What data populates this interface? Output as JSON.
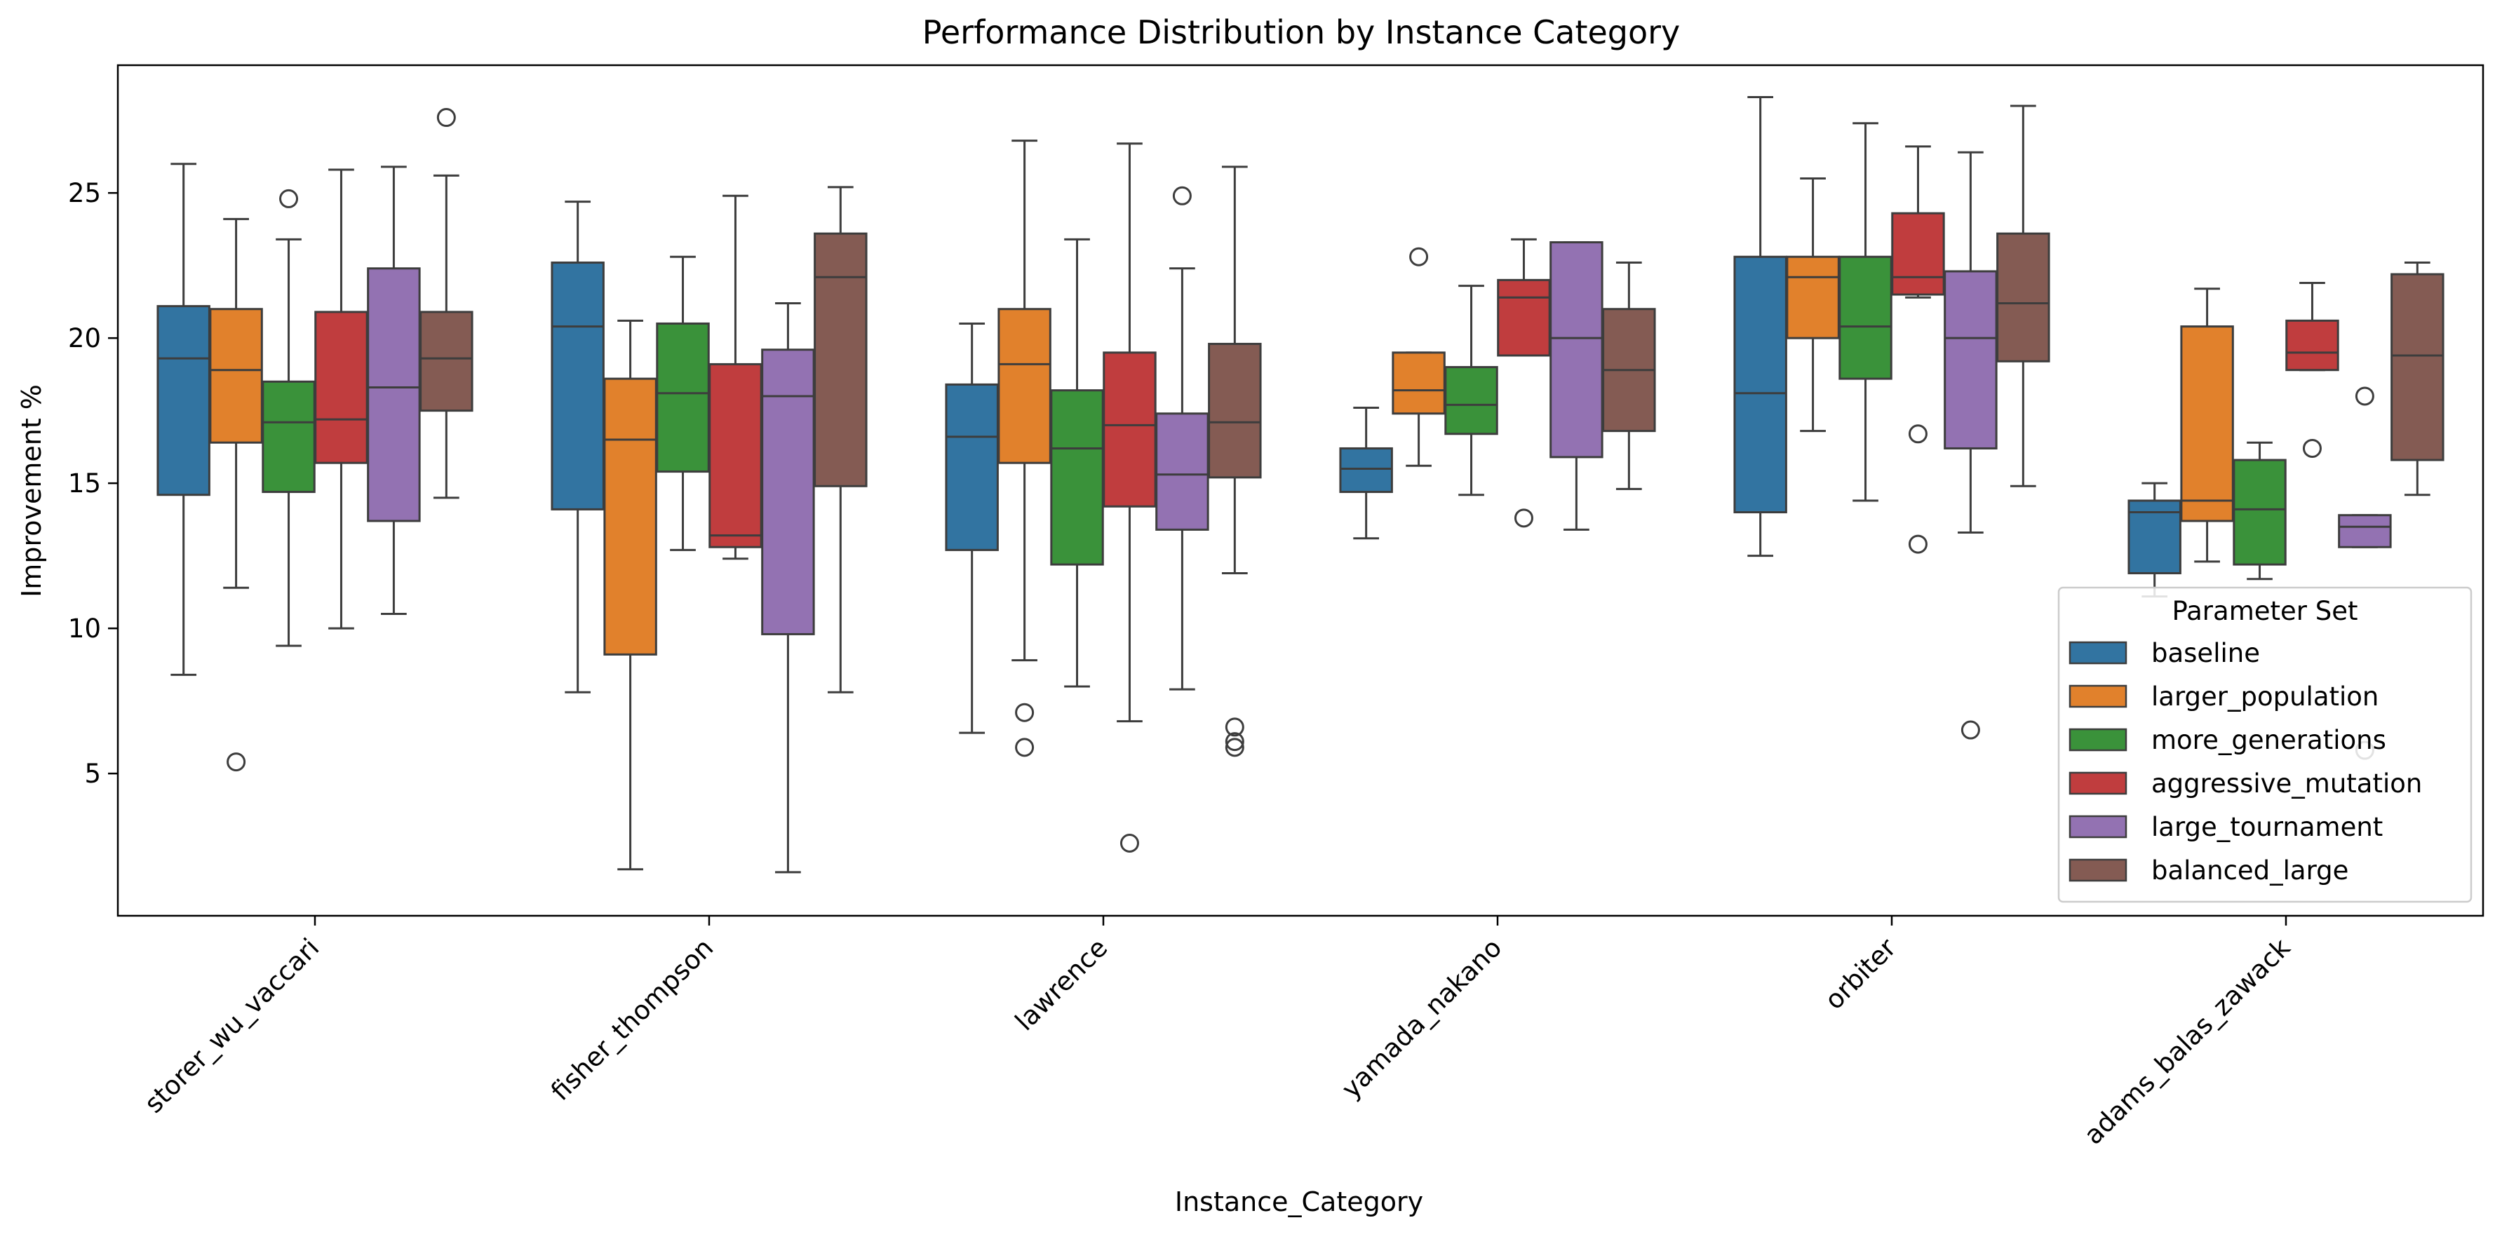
{
  "chart_data": {
    "type": "boxplot",
    "title": "Performance Distribution by Instance Category",
    "xlabel": "Instance_Category",
    "ylabel": "Improvement %",
    "ylim": [
      0.1,
      29.4
    ],
    "yticks": [
      5,
      10,
      15,
      20,
      25
    ],
    "grid": false,
    "legend": {
      "title": "Parameter Set",
      "placement": "lower-right"
    },
    "categories": [
      "storer_wu_vaccari",
      "fisher_thompson",
      "lawrence",
      "yamada_nakano",
      "orbiter",
      "adams_balas_zawack"
    ],
    "series": [
      {
        "name": "baseline",
        "color": "#3274a1",
        "boxes": [
          {
            "whislo": 8.4,
            "q1": 14.6,
            "med": 19.3,
            "q3": 21.1,
            "whishi": 26.0,
            "fliers": []
          },
          {
            "whislo": 7.8,
            "q1": 14.1,
            "med": 20.4,
            "q3": 22.6,
            "whishi": 24.7,
            "fliers": []
          },
          {
            "whislo": 6.4,
            "q1": 12.7,
            "med": 16.6,
            "q3": 18.4,
            "whishi": 20.5,
            "fliers": []
          },
          {
            "whislo": 13.1,
            "q1": 14.7,
            "med": 15.5,
            "q3": 16.2,
            "whishi": 17.6,
            "fliers": []
          },
          {
            "whislo": 12.5,
            "q1": 14.0,
            "med": 18.1,
            "q3": 22.8,
            "whishi": 28.3,
            "fliers": []
          },
          {
            "whislo": 11.1,
            "q1": 11.9,
            "med": 14.0,
            "q3": 14.4,
            "whishi": 15.0,
            "fliers": []
          }
        ]
      },
      {
        "name": "larger_population",
        "color": "#e1812c",
        "boxes": [
          {
            "whislo": 11.4,
            "q1": 16.4,
            "med": 18.9,
            "q3": 21.0,
            "whishi": 24.1,
            "fliers": [
              5.4
            ]
          },
          {
            "whislo": 1.7,
            "q1": 9.1,
            "med": 16.5,
            "q3": 18.6,
            "whishi": 20.6,
            "fliers": []
          },
          {
            "whislo": 8.9,
            "q1": 15.7,
            "med": 19.1,
            "q3": 21.0,
            "whishi": 26.8,
            "fliers": [
              7.1,
              5.9
            ]
          },
          {
            "whislo": 15.6,
            "q1": 17.4,
            "med": 18.2,
            "q3": 19.5,
            "whishi": 19.5,
            "fliers": [
              22.8
            ]
          },
          {
            "whislo": 16.8,
            "q1": 20.0,
            "med": 22.1,
            "q3": 22.8,
            "whishi": 25.5,
            "fliers": []
          },
          {
            "whislo": 12.3,
            "q1": 13.7,
            "med": 14.4,
            "q3": 20.4,
            "whishi": 21.7,
            "fliers": []
          }
        ]
      },
      {
        "name": "more_generations",
        "color": "#3a923a",
        "boxes": [
          {
            "whislo": 9.4,
            "q1": 14.7,
            "med": 17.1,
            "q3": 18.5,
            "whishi": 23.4,
            "fliers": [
              24.8
            ]
          },
          {
            "whislo": 12.7,
            "q1": 15.4,
            "med": 18.1,
            "q3": 20.5,
            "whishi": 22.8,
            "fliers": []
          },
          {
            "whislo": 8.0,
            "q1": 12.2,
            "med": 16.2,
            "q3": 18.2,
            "whishi": 23.4,
            "fliers": []
          },
          {
            "whislo": 14.6,
            "q1": 16.7,
            "med": 17.7,
            "q3": 19.0,
            "whishi": 21.8,
            "fliers": []
          },
          {
            "whislo": 14.4,
            "q1": 18.6,
            "med": 20.4,
            "q3": 22.8,
            "whishi": 27.4,
            "fliers": []
          },
          {
            "whislo": 11.7,
            "q1": 12.2,
            "med": 14.1,
            "q3": 15.8,
            "whishi": 16.4,
            "fliers": []
          }
        ]
      },
      {
        "name": "aggressive_mutation",
        "color": "#c03d3e",
        "boxes": [
          {
            "whislo": 10.0,
            "q1": 15.7,
            "med": 17.2,
            "q3": 20.9,
            "whishi": 25.8,
            "fliers": []
          },
          {
            "whislo": 12.4,
            "q1": 12.8,
            "med": 13.2,
            "q3": 19.1,
            "whishi": 24.9,
            "fliers": []
          },
          {
            "whislo": 6.8,
            "q1": 14.2,
            "med": 17.0,
            "q3": 19.5,
            "whishi": 26.7,
            "fliers": [
              2.6
            ]
          },
          {
            "whislo": 19.4,
            "q1": 19.4,
            "med": 21.4,
            "q3": 22.0,
            "whishi": 23.4,
            "fliers": [
              13.8
            ]
          },
          {
            "whislo": 21.4,
            "q1": 21.5,
            "med": 22.1,
            "q3": 24.3,
            "whishi": 26.6,
            "fliers": [
              16.7,
              12.9
            ]
          },
          {
            "whislo": 18.9,
            "q1": 18.9,
            "med": 19.5,
            "q3": 20.6,
            "whishi": 21.9,
            "fliers": [
              16.2
            ]
          }
        ]
      },
      {
        "name": "large_tournament",
        "color": "#9372b2",
        "boxes": [
          {
            "whislo": 10.5,
            "q1": 13.7,
            "med": 18.3,
            "q3": 22.4,
            "whishi": 25.9,
            "fliers": []
          },
          {
            "whislo": 1.6,
            "q1": 9.8,
            "med": 18.0,
            "q3": 19.6,
            "whishi": 21.2,
            "fliers": []
          },
          {
            "whislo": 7.9,
            "q1": 13.4,
            "med": 15.3,
            "q3": 17.4,
            "whishi": 22.4,
            "fliers": [
              24.9
            ]
          },
          {
            "whislo": 13.4,
            "q1": 15.9,
            "med": 20.0,
            "q3": 23.3,
            "whishi": 23.3,
            "fliers": []
          },
          {
            "whislo": 13.3,
            "q1": 16.2,
            "med": 20.0,
            "q3": 22.3,
            "whishi": 26.4,
            "fliers": [
              6.5
            ]
          },
          {
            "whislo": 12.8,
            "q1": 12.8,
            "med": 13.5,
            "q3": 13.9,
            "whishi": 13.9,
            "fliers": [
              18.0,
              5.8
            ]
          }
        ]
      },
      {
        "name": "balanced_large",
        "color": "#845b53",
        "boxes": [
          {
            "whislo": 14.5,
            "q1": 17.5,
            "med": 19.3,
            "q3": 20.9,
            "whishi": 25.6,
            "fliers": [
              27.6
            ]
          },
          {
            "whislo": 7.8,
            "q1": 14.9,
            "med": 22.1,
            "q3": 23.6,
            "whishi": 25.2,
            "fliers": []
          },
          {
            "whislo": 11.9,
            "q1": 15.2,
            "med": 17.1,
            "q3": 19.8,
            "whishi": 25.9,
            "fliers": [
              6.6,
              6.1,
              5.9
            ]
          },
          {
            "whislo": 14.8,
            "q1": 16.8,
            "med": 18.9,
            "q3": 21.0,
            "whishi": 22.6,
            "fliers": []
          },
          {
            "whislo": 14.9,
            "q1": 19.2,
            "med": 21.2,
            "q3": 23.6,
            "whishi": 28.0,
            "fliers": []
          },
          {
            "whislo": 14.6,
            "q1": 15.8,
            "med": 19.4,
            "q3": 22.2,
            "whishi": 22.6,
            "fliers": []
          }
        ]
      }
    ]
  }
}
